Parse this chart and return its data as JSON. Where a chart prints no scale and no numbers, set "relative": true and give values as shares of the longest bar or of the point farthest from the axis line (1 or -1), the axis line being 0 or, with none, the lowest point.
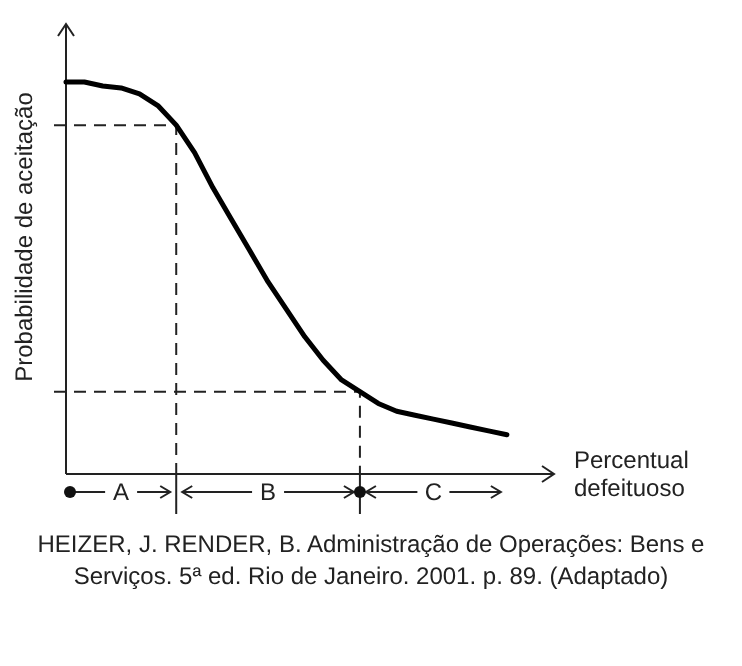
{
  "chart_data": {
    "type": "line",
    "relative": true,
    "xlabel": "Percentual defeituoso",
    "ylabel": "Probabilidade de aceitação",
    "categories": [
      null,
      null,
      null,
      null,
      null,
      null,
      null,
      null,
      null,
      null,
      null,
      null,
      null,
      null,
      null,
      null,
      null,
      null,
      null,
      null,
      null,
      null,
      null,
      null,
      null
    ],
    "series": [
      {
        "color": "#000000",
        "values": [
          1.0,
          1.0,
          0.99,
          0.985,
          0.97,
          0.94,
          0.89,
          0.82,
          0.73,
          0.65,
          0.57,
          0.49,
          0.42,
          0.35,
          0.29,
          0.24,
          0.21,
          0.18,
          0.16,
          0.15,
          0.14,
          0.13,
          0.12,
          0.11,
          0.1
        ]
      }
    ],
    "annotations": [
      "A",
      "B",
      "C",
      "HEIZER, J. RENDER, B. Administração de Operações: Bens e",
      "Serviços. 5ª ed. Rio de Janeiro. 2001. p. 89. (Adaptado)"
    ]
  }
}
